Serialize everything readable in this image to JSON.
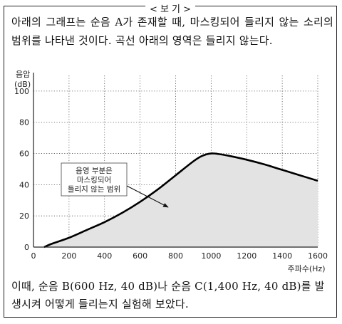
{
  "box_title": "< 보 기 >",
  "intro_text": "아래의 그래프는 순음 A가 존재할 때, 마스킹되어 들리지 않는 소리의 범위를 나타낸 것이다. 곡선 아래의 영역은 들리지 않는다.",
  "outro_text": "이때, 순음 B(600 Hz, 40 dB)나 순음 C(1,400 Hz, 40 dB)를 발생시켜 어떻게 들리는지 실험해 보았다.",
  "chart_data": {
    "type": "area",
    "ylabel_line1": "음압",
    "ylabel_line2": "(dB)",
    "xlabel": "주파수(Hz)",
    "xlim": [
      0,
      1600
    ],
    "ylim": [
      0,
      110
    ],
    "xticks": [
      0,
      200,
      400,
      600,
      800,
      1000,
      1200,
      1400,
      1600
    ],
    "yticks": [
      0,
      20,
      40,
      60,
      80,
      100
    ],
    "grid": true,
    "annotation": [
      "음영 부분은",
      "마스킹되어",
      "들리지 않는 범위"
    ],
    "series": [
      {
        "x": [
          60,
          100,
          200,
          300,
          400,
          500,
          600,
          700,
          800,
          900,
          950,
          1000,
          1050,
          1100,
          1200,
          1300,
          1400,
          1500,
          1600
        ],
        "y": [
          0,
          2,
          6,
          11,
          16,
          22,
          29,
          37,
          46,
          55,
          58.5,
          60,
          59.5,
          58.5,
          56,
          53,
          49.5,
          46,
          42.5
        ]
      }
    ],
    "colors": {
      "fill": "#e3e3e3",
      "line": "#000000",
      "grid": "#555555"
    }
  }
}
